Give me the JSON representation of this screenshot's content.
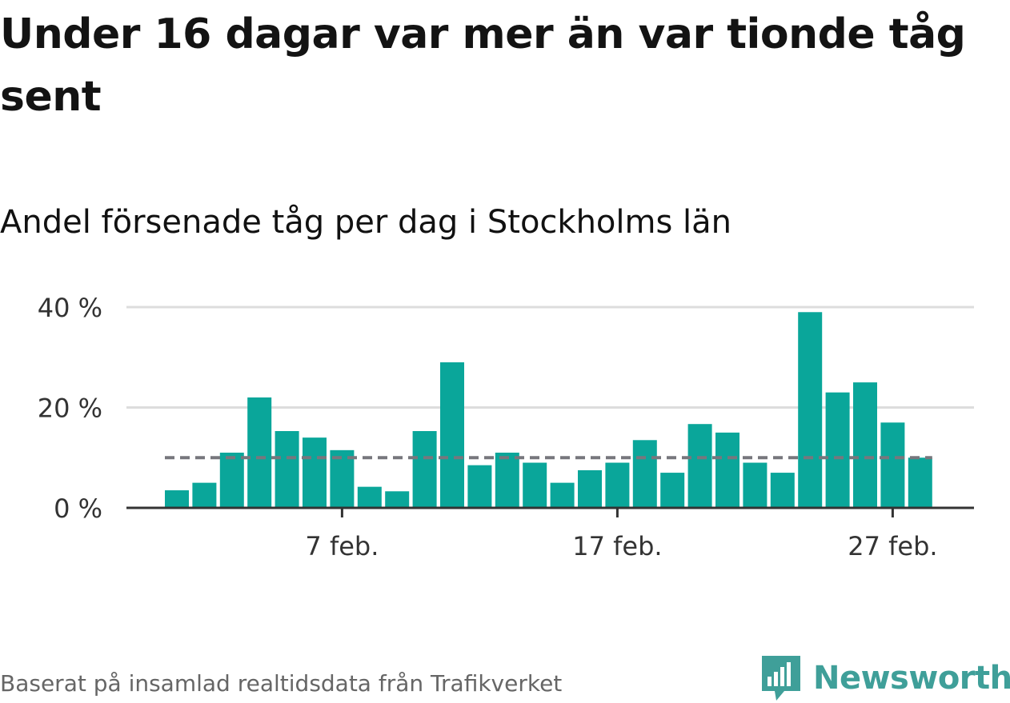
{
  "title": "Under 16 dagar var mer än var tionde tåg sent",
  "subtitle": "Andel försenade tåg per dag i Stockholms län",
  "footer": "Baserat på insamlad realtidsdata från Trafikverket",
  "logo_text": "Newsworthy",
  "colors": {
    "bar": "#0aa69a",
    "reference_line": "#77777d",
    "grid": "#dddddd",
    "axis": "#333333",
    "logo": "#3f9f99"
  },
  "chart_data": {
    "type": "bar",
    "x": [
      "2019-02-01",
      "2019-02-02",
      "2019-02-03",
      "2019-02-04",
      "2019-02-05",
      "2019-02-06",
      "2019-02-07",
      "2019-02-08",
      "2019-02-09",
      "2019-02-10",
      "2019-02-11",
      "2019-02-12",
      "2019-02-13",
      "2019-02-14",
      "2019-02-15",
      "2019-02-16",
      "2019-02-17",
      "2019-02-18",
      "2019-02-19",
      "2019-02-20",
      "2019-02-21",
      "2019-02-22",
      "2019-02-23",
      "2019-02-24",
      "2019-02-25",
      "2019-02-26",
      "2019-02-27",
      "2019-02-28"
    ],
    "values": [
      3.5,
      5,
      11,
      22,
      15.3,
      14,
      11.5,
      4.2,
      3.3,
      15.3,
      29,
      8.5,
      11,
      9,
      5,
      7.5,
      9,
      13.5,
      7,
      16.7,
      15,
      9,
      7,
      39,
      23,
      25,
      17,
      10
    ],
    "reference_line": 10,
    "ylim": [
      0,
      40
    ],
    "y_ticks": [
      {
        "value": 0,
        "label": "0 %"
      },
      {
        "value": 20,
        "label": "20 %"
      },
      {
        "value": 40,
        "label": "40 %"
      }
    ],
    "x_ticks": [
      {
        "index": 6,
        "label": "7 feb."
      },
      {
        "index": 16,
        "label": "17 feb."
      },
      {
        "index": 26,
        "label": "27 feb."
      }
    ],
    "grid": true,
    "xlabel": "",
    "ylabel": ""
  }
}
